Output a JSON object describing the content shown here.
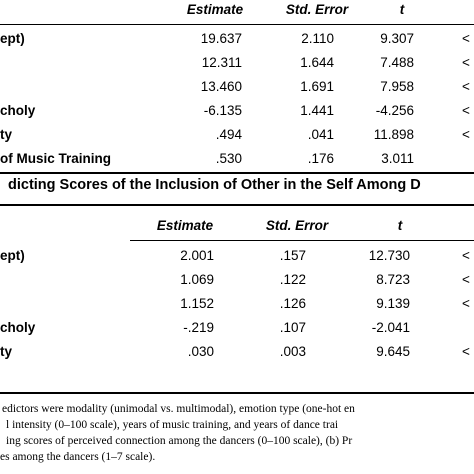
{
  "table1": {
    "headers": {
      "estimate": "Estimate",
      "std_error": "Std. Error",
      "t": "t"
    },
    "rows": [
      {
        "label": "ept)",
        "estimate": "19.637",
        "std_error": "2.110",
        "t": "9.307",
        "p": "<"
      },
      {
        "label": "",
        "estimate": "12.311",
        "std_error": "1.644",
        "t": "7.488",
        "p": "<"
      },
      {
        "label": "",
        "estimate": "13.460",
        "std_error": "1.691",
        "t": "7.958",
        "p": "<"
      },
      {
        "label": "choly",
        "estimate": "-6.135",
        "std_error": "1.441",
        "t": "-4.256",
        "p": "<"
      },
      {
        "label": "ty",
        "estimate": ".494",
        "std_error": ".041",
        "t": "11.898",
        "p": "<"
      },
      {
        "label": "of Music Training",
        "estimate": ".530",
        "std_error": ".176",
        "t": "3.011",
        "p": ""
      }
    ]
  },
  "caption2": "dicting Scores of the Inclusion of Other in the Self Among D",
  "table2": {
    "headers": {
      "estimate": "Estimate",
      "std_error": "Std. Error",
      "t": "t"
    },
    "rows": [
      {
        "label": "ept)",
        "estimate": "2.001",
        "std_error": ".157",
        "t": "12.730",
        "p": "<"
      },
      {
        "label": "",
        "estimate": "1.069",
        "std_error": ".122",
        "t": "8.723",
        "p": "<"
      },
      {
        "label": "",
        "estimate": "1.152",
        "std_error": ".126",
        "t": "9.139",
        "p": "<"
      },
      {
        "label": "choly",
        "estimate": "-.219",
        "std_error": ".107",
        "t": "-2.041",
        "p": ""
      },
      {
        "label": "ty",
        "estimate": ".030",
        "std_error": ".003",
        "t": "9.645",
        "p": "<"
      }
    ]
  },
  "notes": [
    "edictors were modality (unimodal vs. multimodal), emotion type (one-hot en",
    "l intensity (0–100 scale), years of music training, and years of dance trai",
    "ing scores of perceived connection among the dancers (0–100 scale), (b) Pr",
    "es among the dancers (1–7 scale)."
  ]
}
